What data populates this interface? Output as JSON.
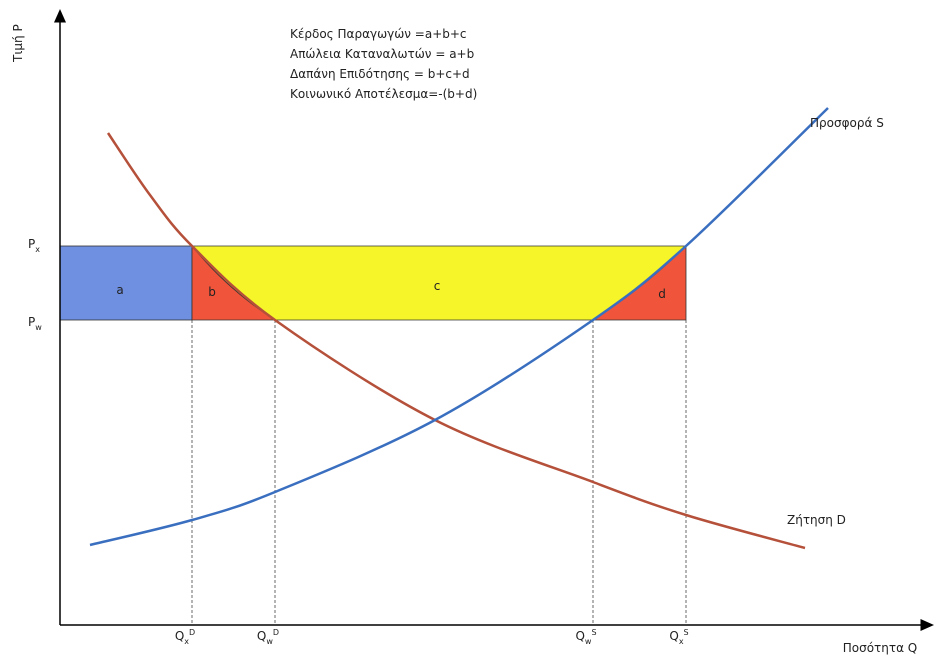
{
  "axes": {
    "y_label": "Τιμή P",
    "x_label": "Ποσότητα Q"
  },
  "legend": [
    "Κέρδος Παραγωγών =a+b+c",
    "Απώλεια Καταναλωτών = a+b",
    "Δαπάνη Επιδότησης = b+c+d",
    "Κοινωνικό Αποτέλεσμα=-(b+d)"
  ],
  "curves": {
    "supply": "Προσφορά S",
    "demand": "Ζήτηση D"
  },
  "areas": [
    "a",
    "b",
    "c",
    "d"
  ],
  "y_ticks": [
    {
      "base": "P",
      "sub": "x"
    },
    {
      "base": "P",
      "sub": "w"
    }
  ],
  "x_ticks": [
    {
      "base": "Q",
      "sub": "x",
      "sup": "D"
    },
    {
      "base": "Q",
      "sub": "w",
      "sup": "D"
    },
    {
      "base": "Q",
      "sub": "w",
      "sup": "S"
    },
    {
      "base": "Q",
      "sub": "x",
      "sup": "S"
    }
  ]
}
